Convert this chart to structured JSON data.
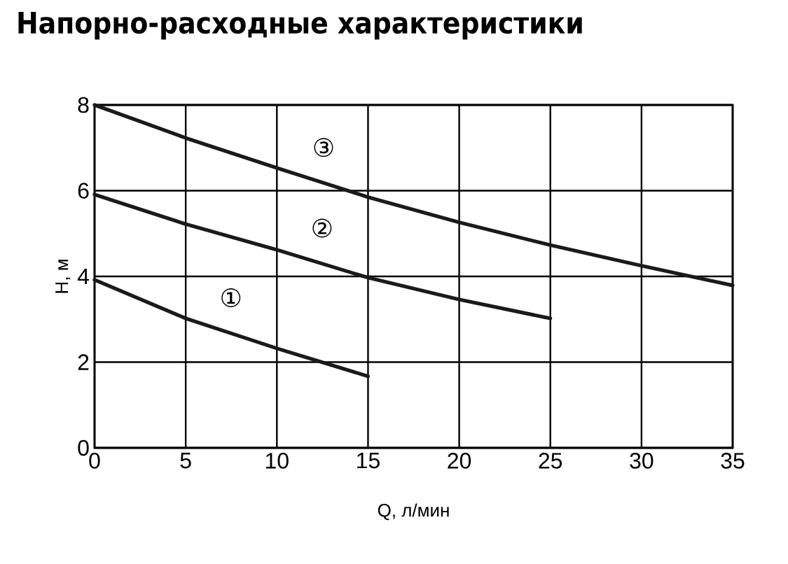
{
  "chart_data": {
    "type": "line",
    "title": "Напорно-расходные характеристики",
    "xlabel": "Q, л/мин",
    "ylabel": "H, м",
    "xlim": [
      0,
      35
    ],
    "ylim": [
      0,
      8
    ],
    "xticks": [
      0,
      5,
      10,
      15,
      20,
      25,
      30,
      35
    ],
    "yticks": [
      0,
      2,
      4,
      6,
      8
    ],
    "grid": true,
    "marker": "none",
    "line_style": "solid",
    "series": [
      {
        "name": "①",
        "color": "#1a1a1a",
        "x": [
          0,
          5,
          10,
          15
        ],
        "values": [
          3.92,
          3.02,
          2.32,
          1.67
        ]
      },
      {
        "name": "②",
        "color": "#1a1a1a",
        "x": [
          0,
          5,
          10,
          15,
          20,
          25
        ],
        "values": [
          5.91,
          5.22,
          4.62,
          3.97,
          3.46,
          3.02
        ]
      },
      {
        "name": "③",
        "color": "#1a1a1a",
        "x": [
          0,
          5,
          10,
          15,
          20,
          25,
          30,
          35
        ],
        "values": [
          8.0,
          7.23,
          6.53,
          5.85,
          5.26,
          4.73,
          4.25,
          3.79
        ]
      }
    ]
  }
}
